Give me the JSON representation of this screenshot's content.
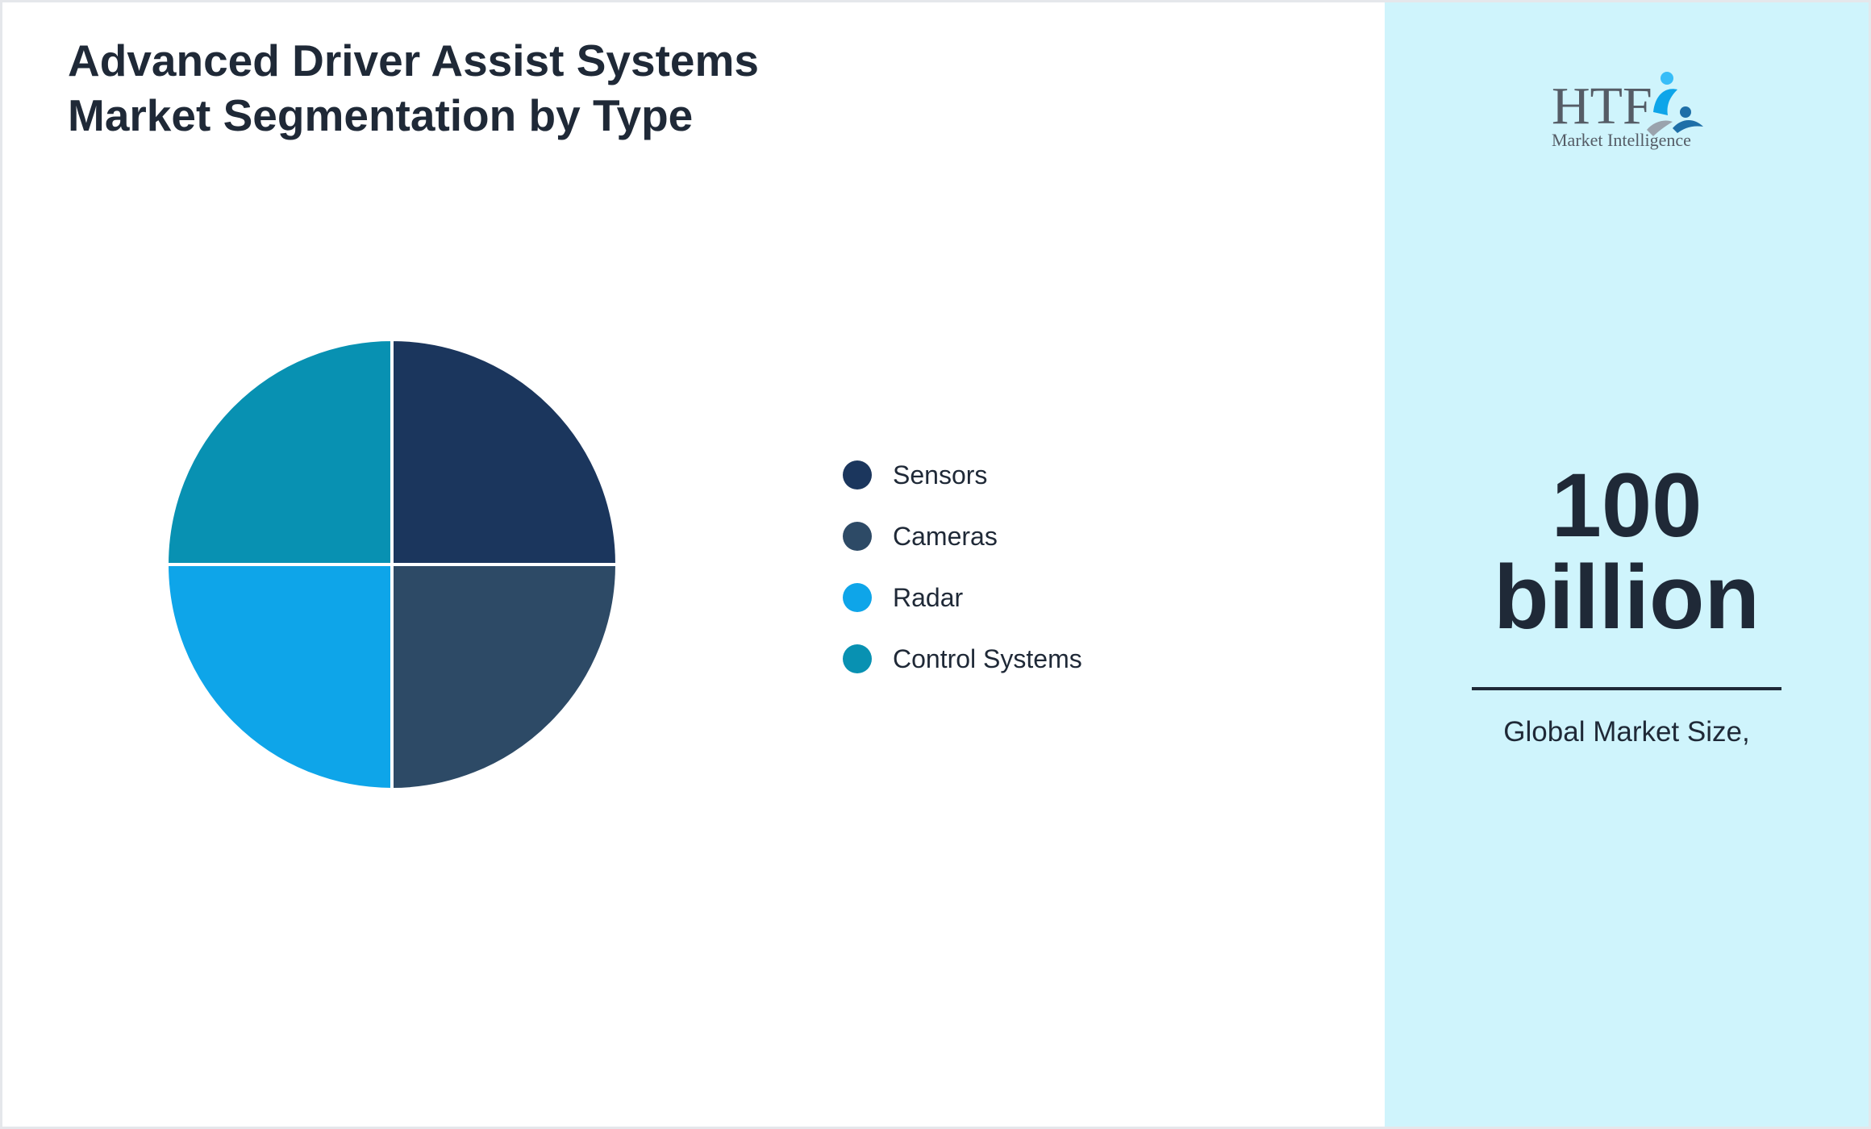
{
  "title_lines": [
    "Advanced Driver Assist Systems",
    "Market Segmentation by Type"
  ],
  "chart_data": {
    "type": "pie",
    "title": "Advanced Driver Assist Systems Market Segmentation by Type",
    "categories": [
      "Sensors",
      "Cameras",
      "Radar",
      "Control Systems"
    ],
    "values": [
      25,
      25,
      25,
      25
    ],
    "colors": [
      "#1b365d",
      "#2d4a66",
      "#0ea5e9",
      "#0891b2"
    ],
    "legend_position": "right"
  },
  "side_panel": {
    "value_line1": "100",
    "value_line2": "billion",
    "caption": "Global Market Size,",
    "background_color": "#cff4fc"
  },
  "logo": {
    "text_main": "HTF",
    "text_sub": "Market Intelligence"
  }
}
